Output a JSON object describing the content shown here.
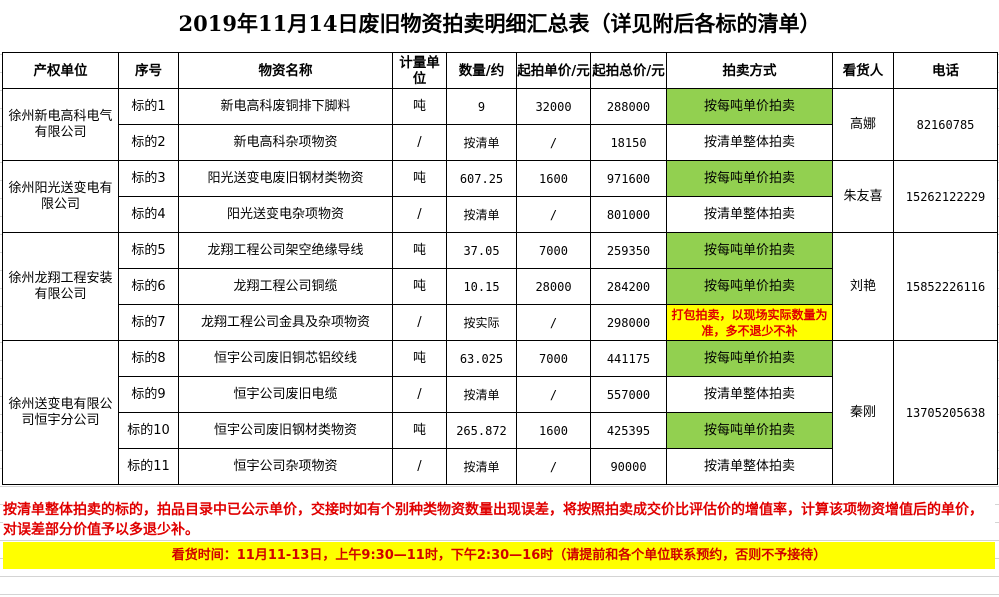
{
  "title": "2019年11月14日废旧物资拍卖明细汇总表（详见附后各标的清单）",
  "headers": [
    "产权单位",
    "序号",
    "物资名称",
    "计量单位",
    "数量/约",
    "起拍单价/元",
    "起拍总价/元",
    "拍卖方式",
    "看货人",
    "电话"
  ],
  "groups": [
    {
      "owner": "徐州新电高科电气有限公司",
      "viewer": "高娜",
      "phone": "82160785",
      "span": 2
    },
    {
      "owner": "徐州阳光送变电有限公司",
      "viewer": "朱友喜",
      "phone": "15262122229",
      "span": 2
    },
    {
      "owner": "徐州龙翔工程安装有限公司",
      "viewer": "刘艳",
      "phone": "15852226116",
      "span": 3
    },
    {
      "owner": "徐州送变电有限公司恒宇分公司",
      "viewer": "秦刚",
      "phone": "13705205638",
      "span": 4
    }
  ],
  "rows": [
    {
      "lot": "标的1",
      "name": "新电高科废铜排下脚料",
      "unit": "吨",
      "qty": "9",
      "unit_price": "32000",
      "total": "288000",
      "method": "按每吨单价拍卖",
      "method_style": "green"
    },
    {
      "lot": "标的2",
      "name": "新电高科杂项物资",
      "unit": "/",
      "qty": "按清单",
      "unit_price": "/",
      "total": "18150",
      "method": "按清单整体拍卖",
      "method_style": "plain"
    },
    {
      "lot": "标的3",
      "name": "阳光送变电废旧钢材类物资",
      "unit": "吨",
      "qty": "607.25",
      "unit_price": "1600",
      "total": "971600",
      "method": "按每吨单价拍卖",
      "method_style": "green"
    },
    {
      "lot": "标的4",
      "name": "阳光送变电杂项物资",
      "unit": "/",
      "qty": "按清单",
      "unit_price": "/",
      "total": "801000",
      "method": "按清单整体拍卖",
      "method_style": "plain"
    },
    {
      "lot": "标的5",
      "name": "龙翔工程公司架空绝缘导线",
      "unit": "吨",
      "qty": "37.05",
      "unit_price": "7000",
      "total": "259350",
      "method": "按每吨单价拍卖",
      "method_style": "green"
    },
    {
      "lot": "标的6",
      "name": "龙翔工程公司铜缆",
      "unit": "吨",
      "qty": "10.15",
      "unit_price": "28000",
      "total": "284200",
      "method": "按每吨单价拍卖",
      "method_style": "green"
    },
    {
      "lot": "标的7",
      "name": "龙翔工程公司金具及杂项物资",
      "unit": "/",
      "qty": "按实际",
      "unit_price": "/",
      "total": "298000",
      "method": "打包拍卖，以现场实际数量为准，多不退少不补",
      "method_style": "yellow"
    },
    {
      "lot": "标的8",
      "name": "恒宇公司废旧铜芯铝绞线",
      "unit": "吨",
      "qty": "63.025",
      "unit_price": "7000",
      "total": "441175",
      "method": "按每吨单价拍卖",
      "method_style": "green"
    },
    {
      "lot": "标的9",
      "name": "恒宇公司废旧电缆",
      "unit": "/",
      "qty": "按清单",
      "unit_price": "/",
      "total": "557000",
      "method": "按清单整体拍卖",
      "method_style": "plain"
    },
    {
      "lot": "标的10",
      "name": "恒宇公司废旧钢材类物资",
      "unit": "吨",
      "qty": "265.872",
      "unit_price": "1600",
      "total": "425395",
      "method": "按每吨单价拍卖",
      "method_style": "green"
    },
    {
      "lot": "标的11",
      "name": "恒宇公司杂项物资",
      "unit": "/",
      "qty": "按清单",
      "unit_price": "/",
      "total": "90000",
      "method": "按清单整体拍卖",
      "method_style": "plain"
    }
  ],
  "note": "按清单整体拍卖的标的，拍品目录中已公示单价，交接时如有个别种类物资数量出现误差，将按照拍卖成交价比评估价的增值率，计算该项物资增值后的单价，对误差部分价值予以多退少补。",
  "viewing_hours": "看货时间：11月11-13日，上午9:30—11时，下午2:30—16时（请提前和各个单位联系预约，否则不予接待）",
  "colors": {
    "green": "#92d050",
    "yellow": "#ffff00",
    "red": "#e00000"
  }
}
